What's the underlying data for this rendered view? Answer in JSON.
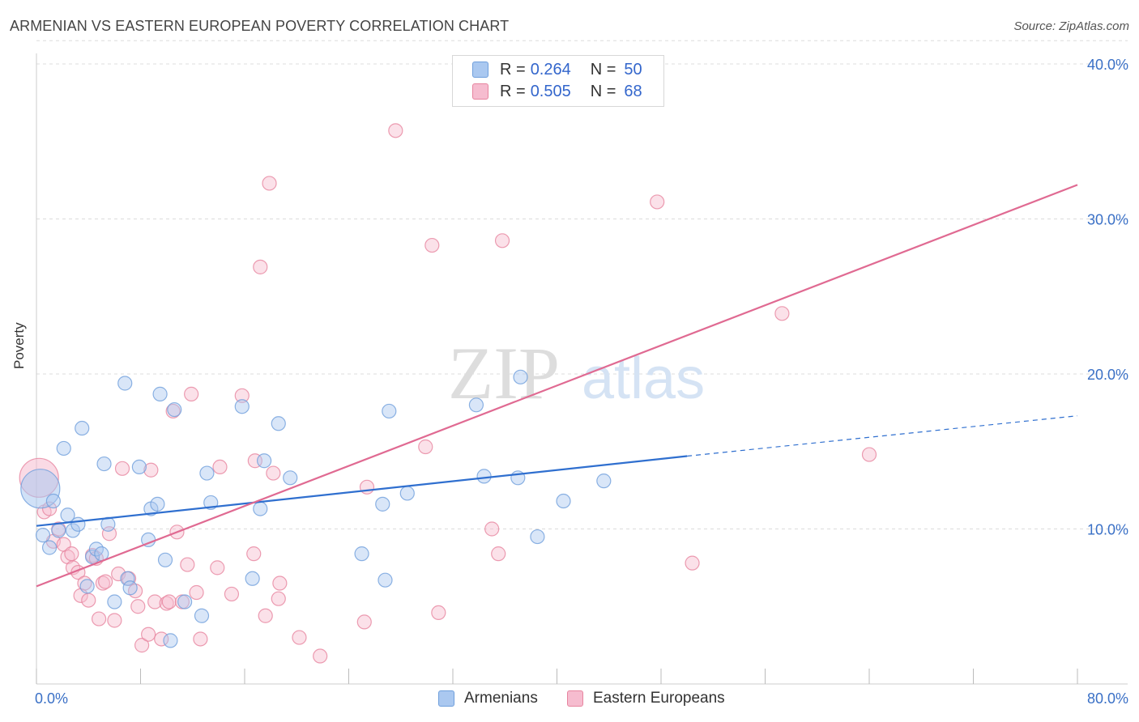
{
  "title": "ARMENIAN VS EASTERN EUROPEAN POVERTY CORRELATION CHART",
  "source": "Source: ZipAtlas.com",
  "watermark": {
    "zip": "ZIP",
    "atlas": "atlas"
  },
  "legend_top": [
    {
      "r_label": "R =",
      "r_value": "0.264",
      "n_label": "N =",
      "n_value": "50"
    },
    {
      "r_label": "R =",
      "r_value": "0.505",
      "n_label": "N =",
      "n_value": "68"
    }
  ],
  "legend_bottom": [
    "Armenians",
    "Eastern Europeans"
  ],
  "colors": {
    "armenians_fill": "#aac8f0",
    "armenians_stroke": "#6f9fdc",
    "armenians_line": "#2f6fcf",
    "eastern_fill": "#f6bccf",
    "eastern_stroke": "#e7849f",
    "eastern_line": "#e06a92",
    "tick_text": "#3a70c6",
    "grid": "#dcdcdc"
  },
  "chart_data": {
    "type": "scatter",
    "title": "ARMENIAN VS EASTERN EUROPEAN POVERTY CORRELATION CHART",
    "xlabel": "",
    "ylabel": "Poverty",
    "xlim": [
      0,
      80
    ],
    "ylim": [
      0,
      40
    ],
    "x_tick_labels": [
      "0.0%",
      "80.0%"
    ],
    "y_ticks": [
      10,
      20,
      30,
      40
    ],
    "y_tick_labels": [
      "10.0%",
      "20.0%",
      "30.0%",
      "40.0%"
    ],
    "grid": true,
    "series": [
      {
        "name": "Armenians",
        "r": 0.264,
        "n": 50,
        "trendline": {
          "x1": 0,
          "y1": 10.2,
          "x2": 50,
          "y2": 14.7,
          "dashed_to_x": 80,
          "dashed_to_y": 17.3
        },
        "points": [
          {
            "x": 0.3,
            "y": 12.6,
            "big": true
          },
          {
            "x": 0.5,
            "y": 9.6
          },
          {
            "x": 1.0,
            "y": 8.8
          },
          {
            "x": 1.3,
            "y": 11.8
          },
          {
            "x": 1.7,
            "y": 9.9
          },
          {
            "x": 2.1,
            "y": 15.2
          },
          {
            "x": 2.4,
            "y": 10.9
          },
          {
            "x": 2.8,
            "y": 9.9
          },
          {
            "x": 3.2,
            "y": 10.3
          },
          {
            "x": 3.5,
            "y": 16.5
          },
          {
            "x": 3.9,
            "y": 6.3
          },
          {
            "x": 4.3,
            "y": 8.2
          },
          {
            "x": 4.6,
            "y": 8.7
          },
          {
            "x": 5.0,
            "y": 8.4
          },
          {
            "x": 5.2,
            "y": 14.2
          },
          {
            "x": 5.5,
            "y": 10.3
          },
          {
            "x": 6.0,
            "y": 5.3
          },
          {
            "x": 6.8,
            "y": 19.4
          },
          {
            "x": 7.0,
            "y": 6.8
          },
          {
            "x": 7.2,
            "y": 6.2
          },
          {
            "x": 7.9,
            "y": 14.0
          },
          {
            "x": 8.6,
            "y": 9.3
          },
          {
            "x": 8.8,
            "y": 11.3
          },
          {
            "x": 9.3,
            "y": 11.6
          },
          {
            "x": 9.5,
            "y": 18.7
          },
          {
            "x": 9.9,
            "y": 8.0
          },
          {
            "x": 10.3,
            "y": 2.8
          },
          {
            "x": 10.6,
            "y": 17.7
          },
          {
            "x": 11.4,
            "y": 5.3
          },
          {
            "x": 12.7,
            "y": 4.4
          },
          {
            "x": 13.1,
            "y": 13.6
          },
          {
            "x": 13.4,
            "y": 11.7
          },
          {
            "x": 15.8,
            "y": 17.9
          },
          {
            "x": 16.6,
            "y": 6.8
          },
          {
            "x": 17.2,
            "y": 11.3
          },
          {
            "x": 17.5,
            "y": 14.4
          },
          {
            "x": 18.6,
            "y": 16.8
          },
          {
            "x": 19.5,
            "y": 13.3
          },
          {
            "x": 25.0,
            "y": 8.4
          },
          {
            "x": 26.6,
            "y": 11.6
          },
          {
            "x": 26.8,
            "y": 6.7
          },
          {
            "x": 27.1,
            "y": 17.6
          },
          {
            "x": 28.5,
            "y": 12.3
          },
          {
            "x": 33.8,
            "y": 18.0
          },
          {
            "x": 34.4,
            "y": 13.4
          },
          {
            "x": 37.0,
            "y": 13.3
          },
          {
            "x": 37.2,
            "y": 19.8
          },
          {
            "x": 38.5,
            "y": 9.5
          },
          {
            "x": 40.5,
            "y": 11.8
          },
          {
            "x": 43.6,
            "y": 13.1
          }
        ]
      },
      {
        "name": "Eastern Europeans",
        "r": 0.505,
        "n": 68,
        "trendline": {
          "x1": 0,
          "y1": 6.3,
          "x2": 80,
          "y2": 32.2
        },
        "points": [
          {
            "x": 0.2,
            "y": 13.3,
            "big": true
          },
          {
            "x": 0.6,
            "y": 11.1
          },
          {
            "x": 1.0,
            "y": 11.3
          },
          {
            "x": 1.3,
            "y": 9.2
          },
          {
            "x": 1.7,
            "y": 10.0
          },
          {
            "x": 2.1,
            "y": 9.0
          },
          {
            "x": 2.4,
            "y": 8.2
          },
          {
            "x": 2.7,
            "y": 8.4
          },
          {
            "x": 2.8,
            "y": 7.5
          },
          {
            "x": 3.2,
            "y": 7.2
          },
          {
            "x": 3.4,
            "y": 5.7
          },
          {
            "x": 3.7,
            "y": 6.5
          },
          {
            "x": 4.0,
            "y": 5.4
          },
          {
            "x": 4.3,
            "y": 8.3
          },
          {
            "x": 4.6,
            "y": 8.1
          },
          {
            "x": 4.8,
            "y": 4.2
          },
          {
            "x": 5.1,
            "y": 6.5
          },
          {
            "x": 5.3,
            "y": 6.6
          },
          {
            "x": 5.6,
            "y": 9.7
          },
          {
            "x": 6.0,
            "y": 4.1
          },
          {
            "x": 6.3,
            "y": 7.1
          },
          {
            "x": 6.6,
            "y": 13.9
          },
          {
            "x": 7.1,
            "y": 6.8
          },
          {
            "x": 7.6,
            "y": 6.0
          },
          {
            "x": 7.8,
            "y": 5.0
          },
          {
            "x": 8.1,
            "y": 2.5
          },
          {
            "x": 8.6,
            "y": 3.2
          },
          {
            "x": 8.8,
            "y": 13.8
          },
          {
            "x": 9.1,
            "y": 5.3
          },
          {
            "x": 9.6,
            "y": 2.9
          },
          {
            "x": 10.0,
            "y": 5.2
          },
          {
            "x": 10.2,
            "y": 5.3
          },
          {
            "x": 10.5,
            "y": 17.6
          },
          {
            "x": 10.8,
            "y": 9.8
          },
          {
            "x": 11.2,
            "y": 5.3
          },
          {
            "x": 11.6,
            "y": 7.7
          },
          {
            "x": 11.9,
            "y": 18.7
          },
          {
            "x": 12.3,
            "y": 5.9
          },
          {
            "x": 12.6,
            "y": 2.9
          },
          {
            "x": 13.9,
            "y": 7.5
          },
          {
            "x": 14.1,
            "y": 14.0
          },
          {
            "x": 15.0,
            "y": 5.8
          },
          {
            "x": 15.8,
            "y": 18.6
          },
          {
            "x": 16.7,
            "y": 8.4
          },
          {
            "x": 16.8,
            "y": 14.4
          },
          {
            "x": 17.2,
            "y": 26.9
          },
          {
            "x": 17.6,
            "y": 4.4
          },
          {
            "x": 17.9,
            "y": 32.3
          },
          {
            "x": 18.2,
            "y": 13.6
          },
          {
            "x": 18.6,
            "y": 5.5
          },
          {
            "x": 18.7,
            "y": 6.5
          },
          {
            "x": 20.2,
            "y": 3.0
          },
          {
            "x": 21.8,
            "y": 1.8
          },
          {
            "x": 25.2,
            "y": 4.0
          },
          {
            "x": 25.4,
            "y": 12.7
          },
          {
            "x": 27.6,
            "y": 35.7
          },
          {
            "x": 29.9,
            "y": 15.3
          },
          {
            "x": 30.4,
            "y": 28.3
          },
          {
            "x": 30.9,
            "y": 4.6
          },
          {
            "x": 35.0,
            "y": 10.0
          },
          {
            "x": 35.5,
            "y": 8.4
          },
          {
            "x": 35.8,
            "y": 28.6
          },
          {
            "x": 45.1,
            "y": 40.0
          },
          {
            "x": 47.7,
            "y": 31.1
          },
          {
            "x": 50.4,
            "y": 7.8
          },
          {
            "x": 57.3,
            "y": 23.9
          },
          {
            "x": 64.0,
            "y": 14.8
          },
          {
            "x": 34.2,
            "y": 39.4
          }
        ]
      }
    ]
  }
}
